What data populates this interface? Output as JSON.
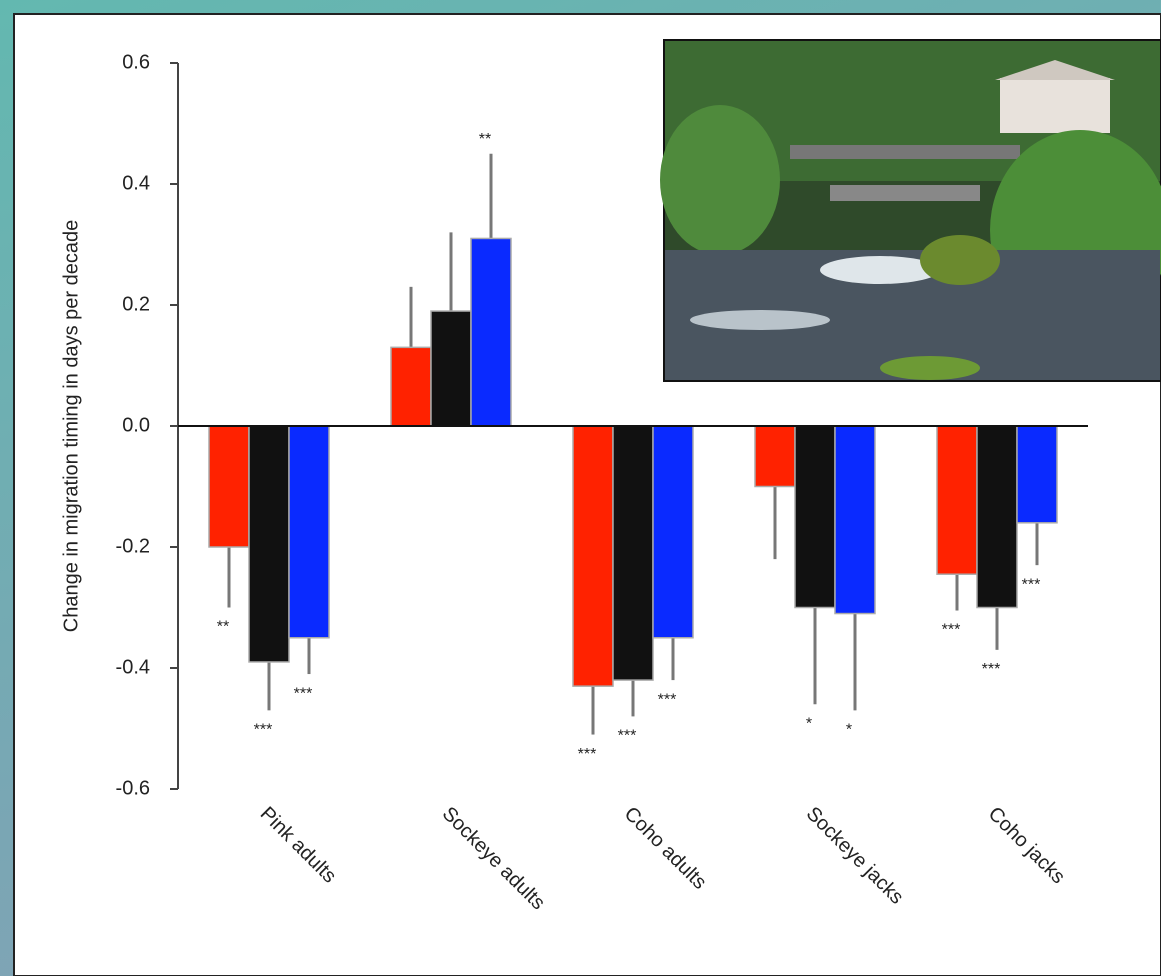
{
  "chart_data": {
    "type": "bar",
    "y_label": "Change in migration timing in days per decade",
    "categories": [
      "Pink adults",
      "Sockeye adults",
      "Coho adults",
      "Sockeye jacks",
      "Coho jacks"
    ],
    "series": [
      {
        "color": "#ff2200",
        "values": [
          -0.2,
          0.13,
          -0.43,
          -0.1,
          -0.245
        ],
        "errors": [
          0.1,
          0.1,
          0.08,
          0.12,
          0.06
        ],
        "sig_labels": [
          "**",
          null,
          "***",
          null,
          "***"
        ]
      },
      {
        "color": "#111111",
        "values": [
          -0.39,
          0.19,
          -0.42,
          -0.3,
          -0.3
        ],
        "errors": [
          0.08,
          0.13,
          0.06,
          0.16,
          0.07
        ],
        "sig_labels": [
          "***",
          null,
          "***",
          "*",
          "***"
        ]
      },
      {
        "color": "#0a2aff",
        "values": [
          -0.35,
          0.31,
          -0.35,
          -0.31,
          -0.16
        ],
        "errors": [
          0.06,
          0.14,
          0.07,
          0.16,
          0.07
        ],
        "sig_labels": [
          "***",
          "**",
          "***",
          "*",
          "***"
        ]
      }
    ],
    "ylim": [
      -0.6,
      0.6
    ],
    "yticks": [
      0.6,
      0.4,
      0.2,
      {
        "value": 0,
        "label": "0.0"
      },
      -0.2,
      -0.4,
      -0.6
    ]
  }
}
